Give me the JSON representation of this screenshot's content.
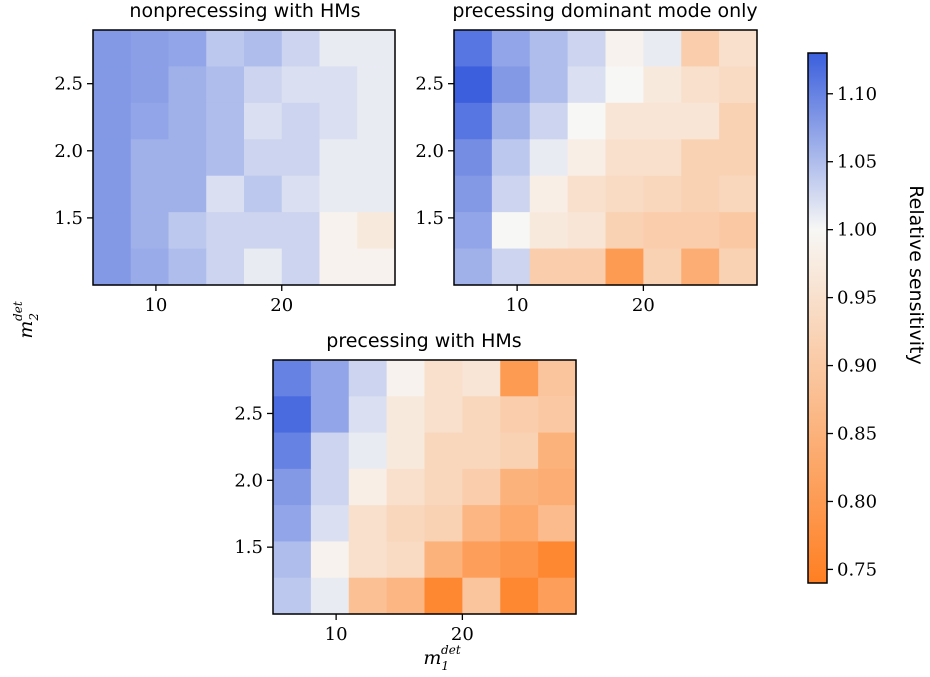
{
  "colors": {
    "low": "#ff7f22",
    "mid": "#f7f7f5",
    "high": "#3b5fdd"
  },
  "shared": {
    "xlabel": "m",
    "xlabel_sub": "1",
    "xlabel_sup": "det",
    "ylabel": "m",
    "ylabel_sub": "2",
    "ylabel_sup": "det"
  },
  "colorbar": {
    "label": "Relative sensitivity",
    "ticks": [
      "0.75",
      "0.80",
      "0.85",
      "0.90",
      "0.95",
      "1.00",
      "1.05",
      "1.10"
    ],
    "range": [
      0.74,
      1.13
    ]
  },
  "chart_data": [
    {
      "type": "heatmap",
      "title": "nonprecessing with HMs",
      "x_ticks": [
        "10",
        "20"
      ],
      "y_ticks": [
        "1.5",
        "2.0",
        "2.5"
      ],
      "values": [
        [
          1.08,
          1.075,
          1.07,
          1.04,
          1.05,
          1.03,
          1.01,
          1.01
        ],
        [
          1.08,
          1.075,
          1.06,
          1.05,
          1.03,
          1.02,
          1.02,
          1.01
        ],
        [
          1.08,
          1.07,
          1.06,
          1.05,
          1.02,
          1.03,
          1.02,
          1.01
        ],
        [
          1.08,
          1.06,
          1.06,
          1.05,
          1.03,
          1.03,
          1.01,
          1.01
        ],
        [
          1.08,
          1.06,
          1.06,
          1.02,
          1.04,
          1.02,
          1.01,
          1.01
        ],
        [
          1.08,
          1.06,
          1.04,
          1.03,
          1.03,
          1.03,
          0.99,
          0.97
        ],
        [
          1.08,
          1.065,
          1.05,
          1.03,
          1.01,
          1.03,
          0.99,
          0.99
        ]
      ]
    },
    {
      "type": "heatmap",
      "title": "precessing dominant mode only",
      "x_ticks": [
        "10",
        "20"
      ],
      "y_ticks": [
        "1.5",
        "2.0",
        "2.5"
      ],
      "values": [
        [
          1.11,
          1.07,
          1.05,
          1.03,
          0.99,
          1.01,
          0.91,
          0.95
        ],
        [
          1.13,
          1.08,
          1.05,
          1.02,
          1.0,
          0.97,
          0.95,
          0.94
        ],
        [
          1.11,
          1.06,
          1.03,
          1.0,
          0.96,
          0.96,
          0.96,
          0.92
        ],
        [
          1.09,
          1.04,
          1.01,
          0.98,
          0.95,
          0.95,
          0.92,
          0.92
        ],
        [
          1.08,
          1.03,
          0.98,
          0.95,
          0.94,
          0.93,
          0.92,
          0.93
        ],
        [
          1.07,
          1.0,
          0.97,
          0.96,
          0.92,
          0.91,
          0.91,
          0.9
        ],
        [
          1.06,
          1.03,
          0.91,
          0.91,
          0.8,
          0.92,
          0.84,
          0.92
        ]
      ]
    },
    {
      "type": "heatmap",
      "title": "precessing with HMs",
      "x_ticks": [
        "10",
        "20"
      ],
      "y_ticks": [
        "1.5",
        "2.0",
        "2.5"
      ],
      "values": [
        [
          1.1,
          1.07,
          1.03,
          0.99,
          0.95,
          0.96,
          0.8,
          0.89
        ],
        [
          1.12,
          1.07,
          1.02,
          0.97,
          0.95,
          0.93,
          0.91,
          0.9
        ],
        [
          1.1,
          1.03,
          1.01,
          0.97,
          0.93,
          0.93,
          0.92,
          0.85
        ],
        [
          1.08,
          1.03,
          0.98,
          0.95,
          0.93,
          0.91,
          0.85,
          0.84
        ],
        [
          1.07,
          1.02,
          0.95,
          0.93,
          0.92,
          0.86,
          0.83,
          0.87
        ],
        [
          1.05,
          0.99,
          0.95,
          0.94,
          0.85,
          0.81,
          0.79,
          0.76
        ],
        [
          1.04,
          1.01,
          0.88,
          0.86,
          0.76,
          0.89,
          0.76,
          0.81
        ]
      ]
    }
  ]
}
